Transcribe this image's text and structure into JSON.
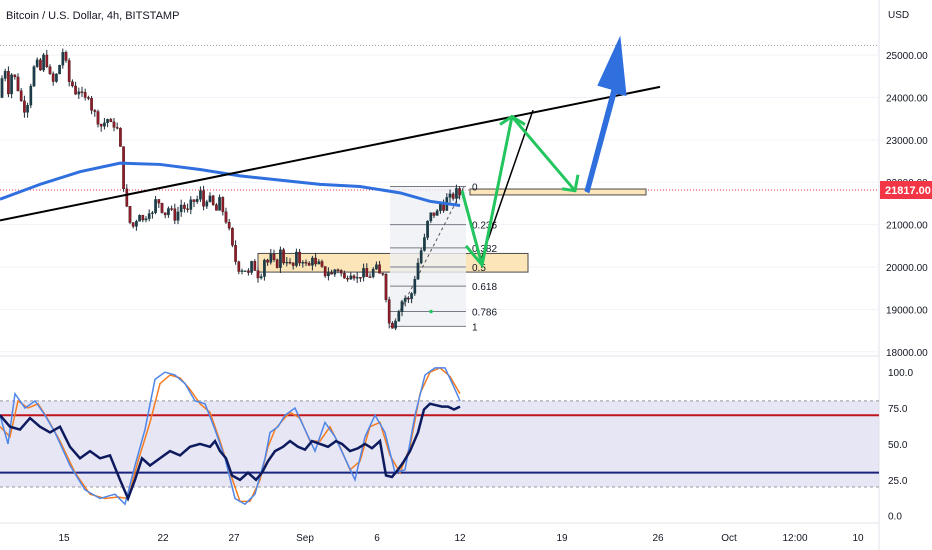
{
  "chart_data": {
    "type": "candlestick",
    "title": "Bitcoin / U.S. Dollar, 4h, BITSTAMP",
    "currency": "USD",
    "current_price": "21817.00",
    "price_axis": {
      "ylim": [
        17900,
        26300
      ],
      "ticks": [
        "25000.00",
        "24000.00",
        "23000.00",
        "22000.00",
        "21000.00",
        "20000.00",
        "19000.00",
        "18000.00"
      ],
      "tick_values": [
        25000,
        24000,
        23000,
        22000,
        21000,
        20000,
        19000,
        18000
      ]
    },
    "time_axis": {
      "ticks": [
        "15",
        "22",
        "27",
        "Sep",
        "6",
        "12",
        "19",
        "26",
        "Oct",
        "12:00",
        "10"
      ]
    },
    "ohlc_path": [
      [
        0,
        24000
      ],
      [
        4,
        24900
      ],
      [
        8,
        24100
      ],
      [
        12,
        24600
      ],
      [
        16,
        24400
      ],
      [
        20,
        24000
      ],
      [
        24,
        23700
      ],
      [
        28,
        23900
      ],
      [
        32,
        24500
      ],
      [
        36,
        24900
      ],
      [
        40,
        24600
      ],
      [
        44,
        25000
      ],
      [
        48,
        24700
      ],
      [
        52,
        24300
      ],
      [
        56,
        24500
      ],
      [
        60,
        24800
      ],
      [
        64,
        25200
      ],
      [
        68,
        24400
      ],
      [
        72,
        24300
      ],
      [
        76,
        24100
      ],
      [
        80,
        24200
      ],
      [
        84,
        23900
      ],
      [
        88,
        24100
      ],
      [
        92,
        23700
      ],
      [
        96,
        23600
      ],
      [
        100,
        23300
      ],
      [
        104,
        23400
      ],
      [
        108,
        23500
      ],
      [
        112,
        23300
      ],
      [
        116,
        23400
      ],
      [
        120,
        22900
      ],
      [
        124,
        21800
      ],
      [
        128,
        21200
      ],
      [
        132,
        20900
      ],
      [
        136,
        21100
      ],
      [
        140,
        21300
      ],
      [
        144,
        21000
      ],
      [
        148,
        21400
      ],
      [
        152,
        21200
      ],
      [
        156,
        21600
      ],
      [
        160,
        21500
      ],
      [
        164,
        21200
      ],
      [
        168,
        21400
      ],
      [
        172,
        21300
      ],
      [
        176,
        21100
      ],
      [
        180,
        21500
      ],
      [
        184,
        21400
      ],
      [
        188,
        21300
      ],
      [
        192,
        21600
      ],
      [
        196,
        21500
      ],
      [
        200,
        21800
      ],
      [
        204,
        21400
      ],
      [
        208,
        21700
      ],
      [
        212,
        21500
      ],
      [
        216,
        21300
      ],
      [
        220,
        21600
      ],
      [
        224,
        21200
      ],
      [
        228,
        21000
      ],
      [
        232,
        20500
      ],
      [
        236,
        20100
      ],
      [
        240,
        19900
      ],
      [
        244,
        20000
      ],
      [
        248,
        19800
      ],
      [
        252,
        20100
      ],
      [
        256,
        19900
      ],
      [
        260,
        19700
      ],
      [
        264,
        20200
      ],
      [
        268,
        20100
      ],
      [
        272,
        20300
      ],
      [
        276,
        19900
      ],
      [
        280,
        20400
      ],
      [
        284,
        20100
      ],
      [
        288,
        20200
      ],
      [
        292,
        19900
      ],
      [
        296,
        20300
      ],
      [
        300,
        20100
      ],
      [
        304,
        20200
      ],
      [
        308,
        19900
      ],
      [
        312,
        20300
      ],
      [
        316,
        20000
      ],
      [
        320,
        20100
      ],
      [
        324,
        19800
      ],
      [
        328,
        19900
      ],
      [
        332,
        19800
      ],
      [
        336,
        20000
      ],
      [
        340,
        19900
      ],
      [
        344,
        19700
      ],
      [
        348,
        19800
      ],
      [
        352,
        19900
      ],
      [
        356,
        19700
      ],
      [
        360,
        19800
      ],
      [
        364,
        19900
      ],
      [
        368,
        19700
      ],
      [
        372,
        19900
      ],
      [
        376,
        20000
      ],
      [
        380,
        19800
      ],
      [
        384,
        19900
      ],
      [
        388,
        18700
      ],
      [
        392,
        18600
      ],
      [
        396,
        18800
      ],
      [
        400,
        19100
      ],
      [
        404,
        19300
      ],
      [
        408,
        19200
      ],
      [
        412,
        19400
      ],
      [
        416,
        19900
      ],
      [
        420,
        20300
      ],
      [
        424,
        20600
      ],
      [
        428,
        21100
      ],
      [
        432,
        21300
      ],
      [
        436,
        21200
      ],
      [
        440,
        21500
      ],
      [
        444,
        21400
      ],
      [
        448,
        21700
      ],
      [
        452,
        21600
      ],
      [
        456,
        21800
      ],
      [
        460,
        21700
      ],
      [
        463,
        21817
      ]
    ],
    "moving_average_200": [
      [
        0,
        21600
      ],
      [
        40,
        21950
      ],
      [
        80,
        22250
      ],
      [
        120,
        22450
      ],
      [
        160,
        22420
      ],
      [
        200,
        22300
      ],
      [
        240,
        22150
      ],
      [
        280,
        22050
      ],
      [
        320,
        21950
      ],
      [
        360,
        21900
      ],
      [
        400,
        21750
      ],
      [
        430,
        21550
      ],
      [
        460,
        21450
      ]
    ],
    "trendline": [
      [
        0,
        21100
      ],
      [
        660,
        24250
      ]
    ],
    "fibonacci": {
      "levels": [
        "0",
        "0.236",
        "0.382",
        "0.5",
        "0.618",
        "0.786",
        "1"
      ],
      "prices": [
        21900,
        21000,
        20450,
        20000,
        19550,
        18950,
        18600
      ]
    },
    "demand_zone": {
      "price_top": 20320,
      "price_bottom": 19880
    },
    "supply_zone": {
      "price_top": 21840,
      "price_bottom": 21700
    },
    "projection_green": [
      [
        462,
        21800
      ],
      [
        482,
        20050
      ],
      [
        512,
        23550
      ],
      [
        575,
        21800
      ]
    ],
    "projection_blue": [
      [
        585,
        21800
      ],
      [
        620,
        24900
      ]
    ],
    "stoch_rsi": {
      "ylim": [
        -3,
        105
      ],
      "ticks": [
        "100.0",
        "75.0",
        "50.0",
        "25.0",
        "0.0"
      ],
      "tick_values": [
        100,
        75,
        50,
        25,
        0
      ],
      "upper_band": 70,
      "lower_band": 30,
      "k_line": [
        [
          0,
          70
        ],
        [
          8,
          50
        ],
        [
          15,
          85
        ],
        [
          25,
          75
        ],
        [
          35,
          80
        ],
        [
          45,
          70
        ],
        [
          55,
          58
        ],
        [
          70,
          35
        ],
        [
          85,
          18
        ],
        [
          100,
          12
        ],
        [
          115,
          15
        ],
        [
          125,
          8
        ],
        [
          135,
          35
        ],
        [
          145,
          60
        ],
        [
          155,
          95
        ],
        [
          165,
          100
        ],
        [
          175,
          98
        ],
        [
          185,
          92
        ],
        [
          195,
          80
        ],
        [
          205,
          78
        ],
        [
          215,
          60
        ],
        [
          225,
          40
        ],
        [
          235,
          12
        ],
        [
          245,
          8
        ],
        [
          255,
          15
        ],
        [
          265,
          40
        ],
        [
          270,
          58
        ],
        [
          278,
          62
        ],
        [
          285,
          70
        ],
        [
          295,
          75
        ],
        [
          305,
          60
        ],
        [
          315,
          45
        ],
        [
          325,
          65
        ],
        [
          335,
          55
        ],
        [
          345,
          40
        ],
        [
          355,
          25
        ],
        [
          365,
          55
        ],
        [
          375,
          70
        ],
        [
          385,
          58
        ],
        [
          395,
          30
        ],
        [
          405,
          32
        ],
        [
          415,
          70
        ],
        [
          425,
          98
        ],
        [
          435,
          103
        ],
        [
          445,
          103
        ],
        [
          455,
          88
        ],
        [
          460,
          80
        ]
      ],
      "d_line": [
        [
          0,
          62
        ],
        [
          10,
          55
        ],
        [
          18,
          80
        ],
        [
          28,
          75
        ],
        [
          38,
          78
        ],
        [
          48,
          67
        ],
        [
          60,
          52
        ],
        [
          75,
          30
        ],
        [
          90,
          15
        ],
        [
          105,
          12
        ],
        [
          118,
          13
        ],
        [
          128,
          12
        ],
        [
          138,
          38
        ],
        [
          150,
          65
        ],
        [
          160,
          92
        ],
        [
          170,
          98
        ],
        [
          180,
          96
        ],
        [
          190,
          88
        ],
        [
          200,
          78
        ],
        [
          210,
          72
        ],
        [
          220,
          52
        ],
        [
          230,
          30
        ],
        [
          240,
          10
        ],
        [
          250,
          10
        ],
        [
          260,
          25
        ],
        [
          268,
          48
        ],
        [
          275,
          60
        ],
        [
          282,
          66
        ],
        [
          290,
          72
        ],
        [
          300,
          68
        ],
        [
          310,
          52
        ],
        [
          320,
          52
        ],
        [
          330,
          62
        ],
        [
          340,
          48
        ],
        [
          350,
          32
        ],
        [
          360,
          38
        ],
        [
          370,
          62
        ],
        [
          380,
          65
        ],
        [
          390,
          42
        ],
        [
          400,
          30
        ],
        [
          410,
          48
        ],
        [
          420,
          85
        ],
        [
          430,
          100
        ],
        [
          440,
          103
        ],
        [
          450,
          97
        ],
        [
          460,
          85
        ]
      ],
      "rsi_line": [
        [
          0,
          70
        ],
        [
          10,
          62
        ],
        [
          20,
          60
        ],
        [
          30,
          68
        ],
        [
          40,
          62
        ],
        [
          50,
          58
        ],
        [
          60,
          62
        ],
        [
          70,
          48
        ],
        [
          80,
          40
        ],
        [
          90,
          45
        ],
        [
          100,
          40
        ],
        [
          110,
          42
        ],
        [
          120,
          25
        ],
        [
          128,
          12
        ],
        [
          135,
          25
        ],
        [
          142,
          40
        ],
        [
          150,
          35
        ],
        [
          160,
          40
        ],
        [
          170,
          45
        ],
        [
          180,
          42
        ],
        [
          190,
          48
        ],
        [
          200,
          50
        ],
        [
          210,
          48
        ],
        [
          215,
          52
        ],
        [
          220,
          45
        ],
        [
          226,
          40
        ],
        [
          232,
          28
        ],
        [
          240,
          25
        ],
        [
          248,
          30
        ],
        [
          256,
          25
        ],
        [
          262,
          30
        ],
        [
          268,
          38
        ],
        [
          275,
          45
        ],
        [
          283,
          48
        ],
        [
          290,
          52
        ],
        [
          298,
          48
        ],
        [
          305,
          46
        ],
        [
          312,
          52
        ],
        [
          320,
          50
        ],
        [
          328,
          48
        ],
        [
          336,
          52
        ],
        [
          342,
          50
        ],
        [
          350,
          45
        ],
        [
          358,
          47
        ],
        [
          365,
          50
        ],
        [
          372,
          47
        ],
        [
          380,
          52
        ],
        [
          386,
          28
        ],
        [
          392,
          27
        ],
        [
          398,
          32
        ],
        [
          404,
          38
        ],
        [
          410,
          45
        ],
        [
          418,
          58
        ],
        [
          424,
          74
        ],
        [
          430,
          78
        ],
        [
          436,
          77
        ],
        [
          442,
          76
        ],
        [
          448,
          76
        ],
        [
          454,
          74
        ],
        [
          460,
          76
        ]
      ]
    }
  }
}
